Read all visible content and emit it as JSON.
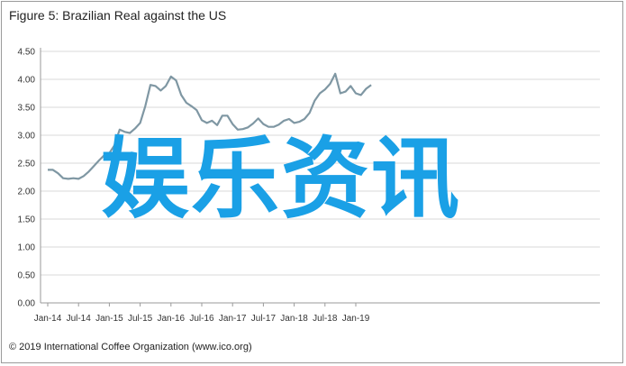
{
  "header": {
    "title": "Figure 5: Brazilian Real against the US"
  },
  "footer": {
    "credit": "© 2019 International Coffee Organization (www.ico.org)"
  },
  "overlay": {
    "watermark": "娱乐资讯"
  },
  "colors": {
    "line": "#7f97a3",
    "gridline": "#d9d9d9",
    "axis": "#9a9a9a",
    "watermark": "#1aa0e6"
  },
  "chart_data": {
    "type": "line",
    "title": "Figure 5: Brazilian Real against the US",
    "xlabel": "",
    "ylabel": "",
    "ylim": [
      0,
      4.5
    ],
    "yticks": [
      "0.00",
      "0.50",
      "1.00",
      "1.50",
      "2.00",
      "2.50",
      "3.00",
      "3.50",
      "4.00",
      "4.50"
    ],
    "xticks": [
      "Jan-14",
      "Jul-14",
      "Jan-15",
      "Jul-15",
      "Jan-16",
      "Jul-16",
      "Jan-17",
      "Jul-17",
      "Jan-18",
      "Jul-18",
      "Jan-19"
    ],
    "grid": true,
    "legend": "none",
    "x": [
      "Jan-14",
      "Feb-14",
      "Mar-14",
      "Apr-14",
      "May-14",
      "Jun-14",
      "Jul-14",
      "Aug-14",
      "Sep-14",
      "Oct-14",
      "Nov-14",
      "Dec-14",
      "Jan-15",
      "Feb-15",
      "Mar-15",
      "Apr-15",
      "May-15",
      "Jun-15",
      "Jul-15",
      "Aug-15",
      "Sep-15",
      "Oct-15",
      "Nov-15",
      "Dec-15",
      "Jan-16",
      "Feb-16",
      "Mar-16",
      "Apr-16",
      "May-16",
      "Jun-16",
      "Jul-16",
      "Aug-16",
      "Sep-16",
      "Oct-16",
      "Nov-16",
      "Dec-16",
      "Jan-17",
      "Feb-17",
      "Mar-17",
      "Apr-17",
      "May-17",
      "Jun-17",
      "Jul-17",
      "Aug-17",
      "Sep-17",
      "Oct-17",
      "Nov-17",
      "Dec-17",
      "Jan-18",
      "Feb-18",
      "Mar-18",
      "Apr-18",
      "May-18",
      "Jun-18",
      "Jul-18",
      "Aug-18",
      "Sep-18",
      "Oct-18",
      "Nov-18",
      "Dec-18",
      "Jan-19",
      "Feb-19",
      "Mar-19",
      "Apr-19"
    ],
    "series": [
      {
        "values": [
          2.38,
          2.38,
          2.32,
          2.23,
          2.22,
          2.23,
          2.22,
          2.27,
          2.35,
          2.45,
          2.55,
          2.64,
          2.68,
          2.82,
          3.1,
          3.06,
          3.04,
          3.12,
          3.22,
          3.52,
          3.9,
          3.88,
          3.8,
          3.88,
          4.05,
          3.98,
          3.72,
          3.58,
          3.52,
          3.45,
          3.27,
          3.22,
          3.26,
          3.18,
          3.35,
          3.35,
          3.2,
          3.1,
          3.11,
          3.14,
          3.21,
          3.3,
          3.2,
          3.15,
          3.15,
          3.19,
          3.26,
          3.29,
          3.22,
          3.24,
          3.29,
          3.4,
          3.62,
          3.75,
          3.82,
          3.92,
          4.1,
          3.75,
          3.78,
          3.88,
          3.75,
          3.72,
          3.83,
          3.9
        ]
      }
    ]
  }
}
